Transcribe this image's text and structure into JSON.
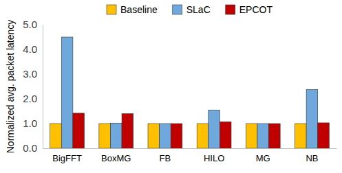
{
  "chart_data": {
    "type": "bar",
    "y_label": "Normalized avg. packet latency",
    "categories": [
      "BigFFT",
      "BoxMG",
      "FB",
      "HILO",
      "MG",
      "NB"
    ],
    "series": [
      {
        "name": "Baseline",
        "color": "#ffc000",
        "values": [
          1.0,
          1.0,
          1.0,
          1.0,
          1.0,
          1.0
        ]
      },
      {
        "name": "SLaC",
        "color": "#6fa8dc",
        "values": [
          4.5,
          1.02,
          1.0,
          1.55,
          1.0,
          2.38
        ]
      },
      {
        "name": "EPCOT",
        "color": "#c00000",
        "values": [
          1.42,
          1.4,
          1.0,
          1.07,
          1.0,
          1.03
        ]
      }
    ],
    "ylim": [
      0,
      5
    ],
    "yticks": [
      {
        "value": 0,
        "label": "0.0"
      },
      {
        "value": 1,
        "label": "1.0"
      },
      {
        "value": 2,
        "label": "2.0"
      },
      {
        "value": 3,
        "label": "3.0"
      },
      {
        "value": 4,
        "label": "4.0"
      },
      {
        "value": 5,
        "label": "5.0"
      }
    ],
    "grid": false,
    "legend": "top"
  }
}
